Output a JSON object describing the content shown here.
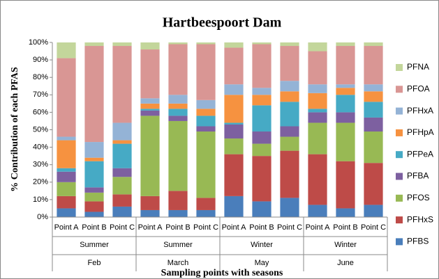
{
  "chart_data": {
    "type": "stacked_bar",
    "title": "Hartbeespoort Dam",
    "y_label": "% Contribution of each PFAS",
    "x_label": "Sampling points with seasons",
    "categories": [
      "Point A",
      "Point B",
      "Point C",
      "Point A",
      "Point B",
      "Point C",
      "Point A",
      "Point B",
      "Point C",
      "Point A",
      "Point B",
      "Point C"
    ],
    "groups": [
      {
        "season": "Summer",
        "month": "Feb"
      },
      {
        "season": "Summer",
        "month": "March"
      },
      {
        "season": "Winter",
        "month": "May"
      },
      {
        "season": "Winter",
        "month": "June"
      }
    ],
    "series": [
      {
        "name": "PFBS",
        "color": "#4a7ebb",
        "values": [
          5,
          3,
          6,
          4,
          4,
          4,
          12,
          9,
          11,
          7,
          5,
          7
        ]
      },
      {
        "name": "PFHxS",
        "color": "#be4b48",
        "values": [
          7,
          6,
          7,
          8,
          11,
          7,
          24,
          26,
          27,
          29,
          27,
          24
        ]
      },
      {
        "name": "PFOS",
        "color": "#98b954",
        "values": [
          8,
          5,
          10,
          46,
          40,
          38,
          9,
          7,
          8,
          18,
          22,
          18
        ]
      },
      {
        "name": "PFBA",
        "color": "#7d60a0",
        "values": [
          6,
          3,
          5,
          3,
          3,
          3,
          8,
          7,
          6,
          6,
          6,
          8
        ]
      },
      {
        "name": "PFPeA",
        "color": "#46aac5",
        "values": [
          2,
          15,
          14,
          1,
          4,
          6,
          1,
          15,
          14,
          2,
          10,
          9
        ]
      },
      {
        "name": "PFHpA",
        "color": "#f69240",
        "values": [
          16,
          2,
          2,
          3,
          3,
          4,
          16,
          6,
          6,
          9,
          4,
          6
        ]
      },
      {
        "name": "PFHxA",
        "color": "#94b3d6",
        "values": [
          2,
          9,
          10,
          3,
          5,
          5,
          6,
          4,
          6,
          5,
          2,
          4
        ]
      },
      {
        "name": "PFOA",
        "color": "#d99694",
        "values": [
          45,
          55,
          44,
          28,
          29,
          32,
          21,
          25,
          20,
          19,
          22,
          22
        ]
      },
      {
        "name": "PFNA",
        "color": "#c3d69b",
        "values": [
          9,
          2,
          2,
          4,
          1,
          1,
          3,
          1,
          2,
          5,
          2,
          2
        ]
      }
    ],
    "ylim": [
      0,
      100
    ],
    "yticks": [
      {
        "value": 0,
        "label": "0%"
      },
      {
        "value": 10,
        "label": "10%"
      },
      {
        "value": 20,
        "label": "20%"
      },
      {
        "value": 30,
        "label": "30%"
      },
      {
        "value": 40,
        "label": "40%"
      },
      {
        "value": 50,
        "label": "50%"
      },
      {
        "value": 60,
        "label": "60%"
      },
      {
        "value": 70,
        "label": "70%"
      },
      {
        "value": 80,
        "label": "80%"
      },
      {
        "value": 90,
        "label": "90%"
      },
      {
        "value": 100,
        "label": "100%"
      }
    ],
    "legend": "right"
  }
}
